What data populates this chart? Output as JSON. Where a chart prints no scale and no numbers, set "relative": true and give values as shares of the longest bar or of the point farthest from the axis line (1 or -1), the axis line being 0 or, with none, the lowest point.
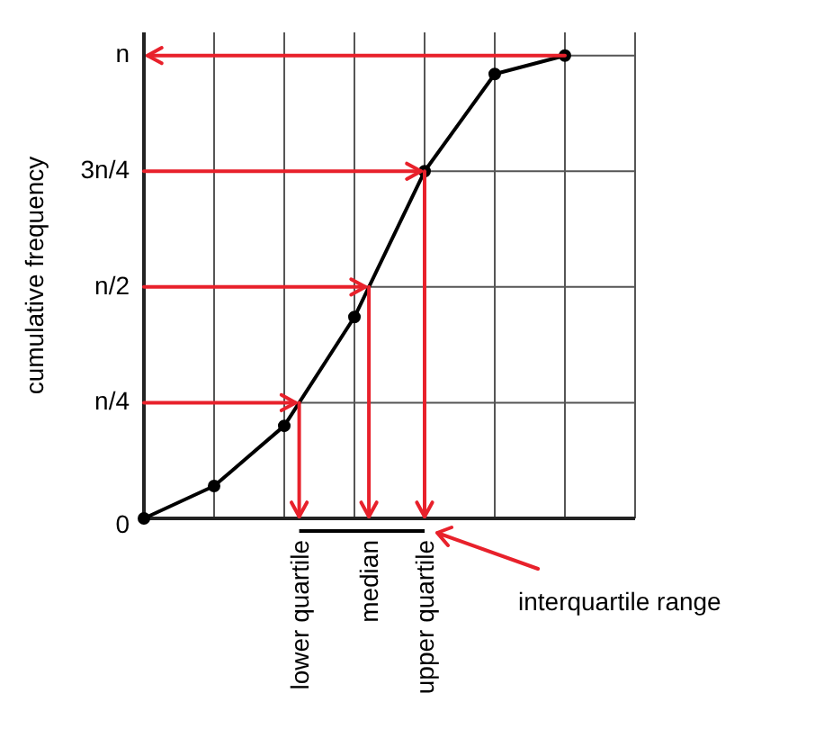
{
  "chart_data": {
    "type": "line",
    "ylabel": "cumulative frequency",
    "relative": true,
    "categories": [
      null,
      null,
      null,
      null,
      null,
      null,
      null,
      null
    ],
    "series": [
      {
        "color": "#000000",
        "values": [
          0,
          0.07,
          0.2,
          0.435,
          0.75,
          0.96,
          1,
          null
        ]
      }
    ],
    "marker": "circle",
    "line_style": "solid",
    "grid": true,
    "legend": false,
    "ref_lines": [
      {
        "axis": "y",
        "value": 0.25,
        "label": "n/4",
        "color": "#e8212b"
      },
      {
        "axis": "y",
        "value": 0.5,
        "label": "n/2",
        "color": "#e8212b"
      },
      {
        "axis": "y",
        "value": 0.75,
        "label": "3n/4",
        "color": "#e8212b"
      },
      {
        "axis": "y",
        "value": 1,
        "label": "n",
        "color": "#e8212b"
      }
    ],
    "annotations": [
      "0",
      "lower quartile",
      "median",
      "upper quartile",
      "interquartile range"
    ]
  }
}
